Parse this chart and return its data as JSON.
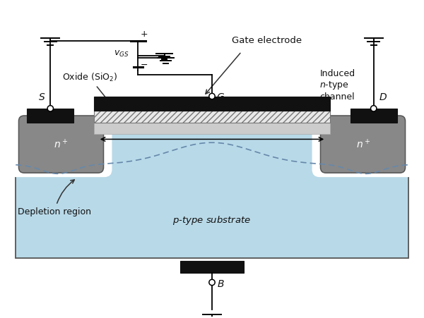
{
  "bg_color": "#ffffff",
  "substrate_color": "#b8d9e8",
  "n_region_color": "#888888",
  "oxide_hatch_color": "#e0e0e0",
  "gate_color": "#111111",
  "metal_color": "#111111",
  "channel_color": "#cccccc",
  "text_color": "#111111",
  "arrow_color": "#333333",
  "wire_color": "#000000",
  "depletion_dash_color": "#6688aa",
  "white_color": "#ffffff",
  "figsize": [
    6.0,
    4.51
  ],
  "dpi": 100,
  "xlim": [
    0,
    10
  ],
  "ylim": [
    0,
    7.5
  ]
}
